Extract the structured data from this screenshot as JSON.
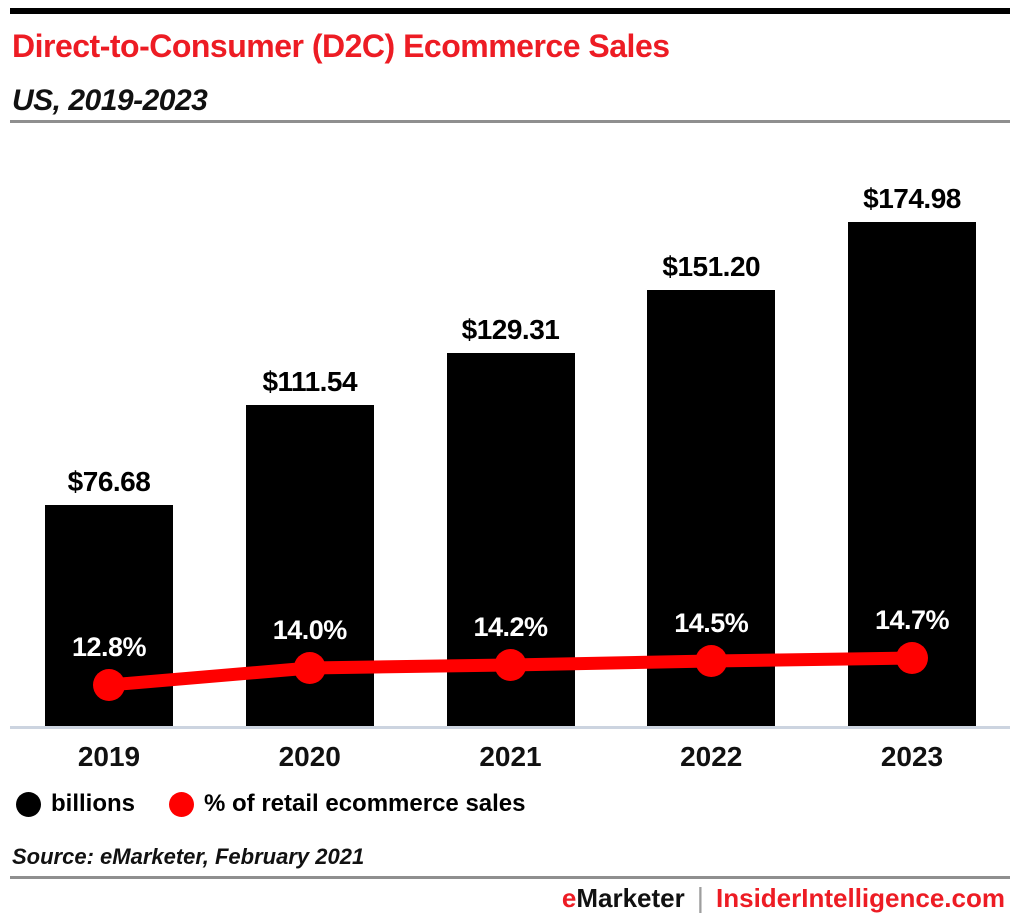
{
  "colors": {
    "accent_red": "#ed1c24",
    "line_red": "#ff0000",
    "bar_black": "#000000",
    "baseline_gray": "#ccd4e0",
    "rule_gray": "#8f8f8f"
  },
  "header": {
    "title": "Direct-to-Consumer (D2C) Ecommerce Sales",
    "subtitle": "US, 2019-2023"
  },
  "chart_data": {
    "type": "bar",
    "title": "Direct-to-Consumer (D2C) Ecommerce Sales",
    "subtitle": "US, 2019-2023",
    "categories": [
      "2019",
      "2020",
      "2021",
      "2022",
      "2023"
    ],
    "series": [
      {
        "name": "billions",
        "type": "bar",
        "color": "#000000",
        "values": [
          76.68,
          111.54,
          129.31,
          151.2,
          174.98
        ],
        "labels": [
          "$76.68",
          "$111.54",
          "$129.31",
          "$151.20",
          "$174.98"
        ]
      },
      {
        "name": "% of retail ecommerce sales",
        "type": "line",
        "color": "#ff0000",
        "values": [
          12.8,
          14.0,
          14.2,
          14.5,
          14.7
        ],
        "labels": [
          "12.8%",
          "14.0%",
          "14.2%",
          "14.5%",
          "14.7%"
        ]
      }
    ],
    "xlabel": "",
    "ylabel": "",
    "ylim": [
      0,
      200
    ],
    "y2lim": [
      0,
      20
    ],
    "grid": false,
    "value_axis_shown": false,
    "legend_position": "bottom-left"
  },
  "legend": {
    "items": [
      {
        "label": "billions",
        "color": "#000000"
      },
      {
        "label": "% of retail ecommerce sales",
        "color": "#ff0000"
      }
    ]
  },
  "source": {
    "text": "Source: eMarketer, February 2021"
  },
  "footer": {
    "brand_prefix": "e",
    "brand_rest": "Marketer",
    "separator": "|",
    "site": "InsiderIntelligence.com"
  }
}
